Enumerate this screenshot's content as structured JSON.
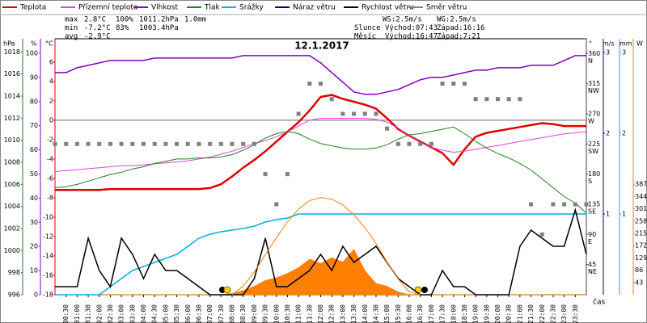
{
  "chart_data": {
    "type": "line",
    "title": "12.1.2017",
    "x_label": "čas",
    "stats": {
      "labels": [
        "max",
        "min",
        "avg"
      ],
      "rows": [
        [
          "2.8°C",
          "100%",
          "1011.2hPa",
          "1.0mm"
        ],
        [
          "-7.2°C",
          "83%",
          "1003.4hPa"
        ],
        [
          "-2.9°C"
        ]
      ],
      "colors": [
        "#e00000",
        "#8000c0",
        "#0000c0",
        "#00b0e0"
      ]
    },
    "info": [
      [
        "WS:2.5m/s",
        "WG:2.5m/s"
      ],
      [
        "Slunce",
        "Východ:07:43",
        "Západ:16:16"
      ],
      [
        "Měsíc",
        "Východ:16:47",
        "Západ:7:21"
      ]
    ],
    "xlim": [
      0,
      24
    ],
    "xticks": [
      {
        "value": 0.5,
        "label": "00:30"
      },
      {
        "value": 1,
        "label": "01:00"
      },
      {
        "value": 1.5,
        "label": "01:30"
      },
      {
        "value": 2,
        "label": "02:00"
      },
      {
        "value": 2.5,
        "label": "02:30"
      },
      {
        "value": 3,
        "label": "03:00"
      },
      {
        "value": 3.5,
        "label": "03:30"
      },
      {
        "value": 4,
        "label": "04:00"
      },
      {
        "value": 4.5,
        "label": "04:30"
      },
      {
        "value": 5,
        "label": "05:00"
      },
      {
        "value": 5.5,
        "label": "05:30"
      },
      {
        "value": 6,
        "label": "06:00"
      },
      {
        "value": 6.5,
        "label": "06:30"
      },
      {
        "value": 7,
        "label": "07:00"
      },
      {
        "value": 7.5,
        "label": "07:30"
      },
      {
        "value": 8,
        "label": "08:00"
      },
      {
        "value": 8.5,
        "label": "08:30"
      },
      {
        "value": 9,
        "label": "09:00"
      },
      {
        "value": 9.5,
        "label": "09:30"
      },
      {
        "value": 10,
        "label": "10:00"
      },
      {
        "value": 10.5,
        "label": "10:30"
      },
      {
        "value": 11,
        "label": "11:00"
      },
      {
        "value": 11.5,
        "label": "11:30"
      },
      {
        "value": 12,
        "label": "12:00"
      },
      {
        "value": 12.5,
        "label": "12:30"
      },
      {
        "value": 13,
        "label": "13:00"
      },
      {
        "value": 13.5,
        "label": "13:30"
      },
      {
        "value": 14,
        "label": "14:00"
      },
      {
        "value": 14.5,
        "label": "14:30"
      },
      {
        "value": 15,
        "label": "15:00"
      },
      {
        "value": 15.5,
        "label": "15:30"
      },
      {
        "value": 16,
        "label": "16:00"
      },
      {
        "value": 16.5,
        "label": "16:30"
      },
      {
        "value": 17,
        "label": "17:00"
      },
      {
        "value": 17.5,
        "label": "17:30"
      },
      {
        "value": 18,
        "label": "18:00"
      },
      {
        "value": 18.5,
        "label": "18:30"
      },
      {
        "value": 19,
        "label": "19:00"
      },
      {
        "value": 19.5,
        "label": "19:30"
      },
      {
        "value": 20,
        "label": "20:00"
      },
      {
        "value": 20.5,
        "label": "20:30"
      },
      {
        "value": 21,
        "label": "21:00"
      },
      {
        "value": 21.5,
        "label": "21:30"
      },
      {
        "value": 22,
        "label": "22:00"
      },
      {
        "value": 22.5,
        "label": "22:30"
      },
      {
        "value": 23,
        "label": "23:00"
      },
      {
        "value": 23.5,
        "label": "23:30"
      }
    ],
    "axes": {
      "hpa": {
        "label": "hPa",
        "color": "#208020",
        "lim": [
          996,
          1019.2
        ],
        "ticks": [
          996,
          998,
          1000,
          1002,
          1004,
          1006,
          1008,
          1010,
          1012,
          1014,
          1016,
          1018
        ]
      },
      "pct": {
        "label": "%",
        "color": "#8000c0",
        "lim": [
          0,
          106
        ],
        "ticks": [
          0,
          10,
          20,
          30,
          40,
          50,
          60,
          70,
          80,
          90,
          100
        ]
      },
      "temp": {
        "label": "°C",
        "color": "#e00000",
        "lim": [
          -18,
          8.4
        ],
        "ticks": [
          -18,
          -16,
          -14,
          -12,
          -10,
          -8,
          -6,
          -4,
          -2,
          0,
          2,
          4,
          6
        ]
      },
      "dir": {
        "label": "°",
        "color": "#404040",
        "lim": [
          0,
          382
        ],
        "ticks": [
          45,
          90,
          135,
          180,
          225,
          270,
          315,
          360
        ],
        "tick_names": [
          "NE",
          "E",
          "SE",
          "S",
          "SW",
          "W",
          "NW",
          "N"
        ]
      },
      "ms": {
        "label": "m/s",
        "color": "#000080",
        "lim": [
          0,
          3.17
        ],
        "ticks": [
          1,
          2,
          3
        ]
      },
      "mm": {
        "label": "mm",
        "color": "#00b0e0",
        "lim": [
          0,
          3.17
        ],
        "ticks": [
          1,
          2,
          3
        ]
      },
      "w": {
        "label": "W",
        "color": "#ff8000",
        "lim": [
          0,
          897
        ],
        "ticks": [
          43,
          86,
          129,
          172,
          215,
          258,
          301,
          344,
          387
        ]
      }
    },
    "x": [
      0,
      0.5,
      1,
      1.5,
      2,
      2.5,
      3,
      3.5,
      4,
      4.5,
      5,
      5.5,
      6,
      6.5,
      7,
      7.5,
      8,
      8.5,
      9,
      9.5,
      10,
      10.5,
      11,
      11.5,
      12,
      12.5,
      13,
      13.5,
      14,
      14.5,
      15,
      15.5,
      16,
      16.5,
      17,
      17.5,
      18,
      18.5,
      19,
      19.5,
      20,
      20.5,
      21,
      21.5,
      22,
      22.5,
      23,
      23.5,
      24
    ],
    "series": [
      {
        "name": "Teplota",
        "color": "#e00000",
        "axis": "temp",
        "style": "line",
        "width": 2.5,
        "values": [
          -7.2,
          -7.2,
          -7.2,
          -7.2,
          -7.2,
          -7.1,
          -7.1,
          -7.1,
          -7.1,
          -7.1,
          -7.1,
          -7.1,
          -7.1,
          -7.1,
          -7.0,
          -6.6,
          -5.8,
          -4.9,
          -4.1,
          -3.2,
          -2.2,
          -1.2,
          -0.2,
          1.0,
          2.4,
          2.6,
          2.2,
          1.9,
          1.6,
          1.2,
          0.2,
          -0.9,
          -1.6,
          -2.2,
          -2.8,
          -3.4,
          -4.6,
          -3.0,
          -1.7,
          -1.3,
          -1.1,
          -0.9,
          -0.7,
          -0.5,
          -0.3,
          -0.4,
          -0.6,
          -0.6,
          -0.6
        ]
      },
      {
        "name": "Přízemní teplota",
        "color": "#e040e0",
        "axis": "temp",
        "style": "line",
        "width": 1,
        "values": [
          -5.3,
          -5.2,
          -5.1,
          -5.0,
          -4.9,
          -4.8,
          -4.7,
          -4.7,
          -4.6,
          -4.5,
          -4.4,
          -4.3,
          -4.2,
          -4.0,
          -3.8,
          -3.5,
          -3.2,
          -2.8,
          -2.4,
          -2.1,
          -1.7,
          -1.2,
          -0.6,
          0.0,
          0.2,
          0.2,
          0.2,
          0.2,
          0.2,
          0.1,
          -0.2,
          -0.8,
          -1.6,
          -2.3,
          -2.8,
          -3.1,
          -3.3,
          -3.2,
          -3.0,
          -2.8,
          -2.6,
          -2.4,
          -2.2,
          -2.0,
          -1.8,
          -1.6,
          -1.4,
          -1.3,
          -1.2
        ]
      },
      {
        "name": "Vlhkost",
        "color": "#8000c0",
        "axis": "pct",
        "style": "line",
        "width": 1.5,
        "values": [
          92,
          92,
          94,
          95,
          96,
          97,
          97,
          97,
          97,
          98,
          98,
          98,
          98,
          98,
          98,
          98,
          98,
          99,
          99,
          99,
          99,
          99,
          99,
          99,
          96,
          92,
          88,
          84,
          83,
          83,
          84,
          85,
          87,
          89,
          90,
          90,
          91,
          92,
          93,
          93,
          94,
          94,
          94,
          95,
          95,
          95,
          97,
          99,
          99
        ]
      },
      {
        "name": "Tlak",
        "color": "#208020",
        "axis": "hpa",
        "style": "line",
        "width": 1,
        "values": [
          1005.7,
          1005.8,
          1006.0,
          1006.3,
          1006.6,
          1006.9,
          1007.1,
          1007.4,
          1007.6,
          1007.9,
          1008.1,
          1008.3,
          1008.3,
          1008.4,
          1008.4,
          1008.5,
          1008.7,
          1009.1,
          1009.6,
          1010.2,
          1010.6,
          1010.8,
          1010.6,
          1010.1,
          1009.7,
          1009.5,
          1009.3,
          1009.2,
          1009.2,
          1009.3,
          1009.6,
          1010.1,
          1010.5,
          1010.6,
          1010.8,
          1011.0,
          1011.2,
          1010.6,
          1009.9,
          1009.3,
          1008.8,
          1008.4,
          1007.9,
          1007.3,
          1006.5,
          1005.7,
          1004.9,
          1004.3,
          1003.4
        ]
      },
      {
        "name": "Srážky",
        "color": "#00b0e0",
        "axis": "mm",
        "style": "line",
        "width": 1.5,
        "values": [
          0,
          0,
          0,
          0,
          0,
          0.1,
          0.2,
          0.3,
          0.35,
          0.4,
          0.45,
          0.5,
          0.6,
          0.7,
          0.75,
          0.78,
          0.8,
          0.82,
          0.85,
          0.9,
          0.93,
          0.95,
          1.0,
          1.0,
          1.0,
          1.0,
          1.0,
          1.0,
          1.0,
          1.0,
          1.0,
          1.0,
          1.0,
          1.0,
          1.0,
          1.0,
          1.0,
          1.0,
          1.0,
          1.0,
          1.0,
          1.0,
          1.0,
          1.0,
          1.0,
          1.0,
          1.0,
          1.0,
          1.0
        ]
      },
      {
        "name": "Náraz větru",
        "color": "#000080",
        "axis": "ms",
        "style": "line",
        "width": 1,
        "values": [
          0.1,
          0.1,
          0.1,
          0.7,
          0.3,
          0.1,
          0.7,
          0.5,
          0.2,
          0.5,
          0.3,
          0.3,
          0.2,
          0.1,
          0,
          0,
          0,
          0,
          0.2,
          0.7,
          0.1,
          0.1,
          0.2,
          0.3,
          0.5,
          0.3,
          0.6,
          0.4,
          0.5,
          0.6,
          0.4,
          0.2,
          0.1,
          0,
          0,
          0.3,
          0.1,
          0.1,
          0,
          0,
          0,
          0,
          0.6,
          0.8,
          0.7,
          0.6,
          0.6,
          1.05,
          0.5
        ]
      },
      {
        "name": "Rychlost větru",
        "color": "#000000",
        "axis": "ms",
        "style": "line",
        "width": 1.5,
        "values": [
          0.1,
          0.1,
          0.1,
          0.7,
          0.3,
          0.1,
          0.7,
          0.5,
          0.2,
          0.5,
          0.3,
          0.3,
          0.2,
          0.1,
          0,
          0,
          0,
          0,
          0.2,
          0.7,
          0.1,
          0.1,
          0.2,
          0.3,
          0.5,
          0.3,
          0.6,
          0.4,
          0.5,
          0.6,
          0.4,
          0.2,
          0.1,
          0,
          0,
          0.3,
          0.1,
          0.1,
          0,
          0,
          0,
          0,
          0.6,
          0.8,
          0.7,
          0.6,
          0.6,
          1.05,
          0.5
        ]
      },
      {
        "name": "Směr větru",
        "color": "#808080",
        "axis": "dir",
        "style": "points",
        "width": 1,
        "values": [
          225,
          225,
          225,
          225,
          225,
          225,
          225,
          225,
          225,
          225,
          225,
          225,
          225,
          225,
          225,
          225,
          225,
          225,
          225,
          180,
          135,
          180,
          270,
          315,
          315,
          292,
          270,
          270,
          270,
          270,
          248,
          225,
          225,
          225,
          225,
          315,
          315,
          315,
          292,
          292,
          292,
          292,
          292,
          135,
          90,
          135,
          135,
          135,
          135
        ]
      },
      {
        "color": "#ff8000",
        "axis": "w",
        "style": "area",
        "width": 1,
        "values": [
          0,
          0,
          0,
          0,
          0,
          0,
          0,
          0,
          0,
          0,
          0,
          0,
          0,
          0,
          0,
          0,
          5,
          15,
          30,
          50,
          60,
          75,
          95,
          125,
          110,
          130,
          115,
          160,
          85,
          40,
          30,
          10,
          0,
          0,
          0,
          0,
          0,
          0,
          0,
          0,
          0,
          0,
          0,
          0,
          0,
          0,
          0,
          0,
          0
        ]
      },
      {
        "color": "#ff8000",
        "axis": "w",
        "style": "line",
        "width": 1,
        "values": [
          null,
          null,
          null,
          null,
          null,
          null,
          null,
          null,
          null,
          null,
          null,
          null,
          null,
          null,
          null,
          null,
          0,
          30,
          80,
          140,
          200,
          255,
          300,
          330,
          340,
          335,
          315,
          280,
          235,
          180,
          115,
          55,
          10,
          0,
          null,
          null,
          null,
          null,
          null,
          null,
          null,
          null,
          null,
          null,
          null,
          null,
          null,
          null,
          null
        ]
      }
    ]
  }
}
